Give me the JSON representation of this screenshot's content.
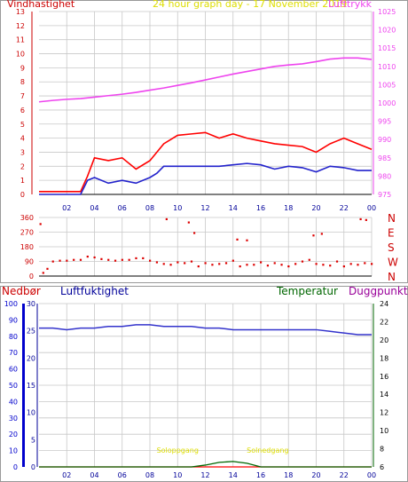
{
  "header_top": {
    "left_label": "Vindhastighet",
    "center_label": "24 hour graph day - 17 November 2019",
    "right_label": "Lufttrykk"
  },
  "header_bottom": {
    "rain_label": "Nedbør",
    "humidity_label": "Luftfuktighet",
    "temp_label": "Temperatur",
    "dew_label": "Duggpunkt"
  },
  "colors": {
    "wind_axis": "#cc0000",
    "pressure": "#ee44ee",
    "gust": "#ff0000",
    "wind_avg": "#2222cc",
    "direction": "#dd0000",
    "rain": "#0000cc",
    "humidity": "#3333cc",
    "temp": "#006600",
    "dew": "#990099",
    "sun_text": "#dddd00",
    "grid": "#c8c8c8"
  },
  "chart_data": [
    {
      "type": "line",
      "title": "24 hour graph day - 17 November 2019",
      "x_ticks": [
        "02",
        "04",
        "06",
        "08",
        "10",
        "12",
        "14",
        "16",
        "18",
        "20",
        "22",
        "00"
      ],
      "y_left": {
        "label": "Vindhastighet",
        "ylim": [
          0,
          13
        ],
        "ticks": [
          "0",
          "1",
          "2",
          "3",
          "4",
          "5",
          "6",
          "7",
          "8",
          "9",
          "10",
          "11",
          "12",
          "13"
        ]
      },
      "y_right": {
        "label": "Lufttrykk",
        "ylim": [
          975,
          1025
        ],
        "ticks": [
          "975",
          "980",
          "985",
          "990",
          "995",
          "1000",
          "1005",
          "1010",
          "1015",
          "1020",
          "1025"
        ]
      },
      "series": [
        {
          "name": "Lufttrykk",
          "axis": "right",
          "x": [
            0,
            1,
            2,
            3,
            4,
            5,
            6,
            7,
            8,
            9,
            10,
            11,
            12,
            13,
            14,
            15,
            16,
            17,
            18,
            19,
            20,
            21,
            22,
            23,
            24
          ],
          "values": [
            1000.3,
            1000.7,
            1001.0,
            1001.2,
            1001.6,
            1002.0,
            1002.4,
            1002.9,
            1003.5,
            1004.1,
            1004.8,
            1005.5,
            1006.3,
            1007.1,
            1007.9,
            1008.6,
            1009.3,
            1010.0,
            1010.4,
            1010.7,
            1011.3,
            1012.0,
            1012.3,
            1012.3,
            1011.9
          ]
        },
        {
          "name": "Vindkast",
          "axis": "left",
          "x": [
            0,
            1,
            2,
            3,
            3.5,
            4,
            5,
            6,
            7,
            8,
            8.5,
            9,
            10,
            11,
            12,
            13,
            14,
            15,
            16,
            17,
            18,
            19,
            20,
            21,
            22,
            23,
            24
          ],
          "values": [
            0.2,
            0.2,
            0.2,
            0.2,
            1.3,
            2.6,
            2.4,
            2.6,
            1.8,
            2.4,
            3.0,
            3.6,
            4.2,
            4.3,
            4.4,
            4.0,
            4.3,
            4.0,
            3.8,
            3.6,
            3.5,
            3.4,
            3.0,
            3.6,
            4.0,
            3.6,
            3.2
          ]
        },
        {
          "name": "Middelvind",
          "axis": "left",
          "x": [
            0,
            1,
            2,
            3,
            3.5,
            4,
            5,
            6,
            7,
            8,
            8.5,
            9,
            10,
            11,
            12,
            13,
            14,
            15,
            16,
            17,
            18,
            19,
            20,
            21,
            22,
            23,
            24
          ],
          "values": [
            0.0,
            0.0,
            0.0,
            0.0,
            1.0,
            1.2,
            0.8,
            1.0,
            0.8,
            1.2,
            1.5,
            2.0,
            2.0,
            2.0,
            2.0,
            2.0,
            2.1,
            2.2,
            2.1,
            1.8,
            2.0,
            1.9,
            1.6,
            2.0,
            1.9,
            1.7,
            1.7
          ]
        }
      ]
    },
    {
      "type": "scatter",
      "y_ticks": [
        "0",
        "90",
        "180",
        "270",
        "360"
      ],
      "y_right_labels": [
        "N",
        "W",
        "S",
        "E",
        "N"
      ],
      "ylim": [
        0,
        360
      ],
      "x_ticks": [
        "02",
        "04",
        "06",
        "08",
        "10",
        "12",
        "14",
        "16",
        "18",
        "20",
        "22",
        "00"
      ],
      "x": [
        0.1,
        0.3,
        0.6,
        1.0,
        1.5,
        2.0,
        2.5,
        3.0,
        3.5,
        4.0,
        4.5,
        5.0,
        5.5,
        6.0,
        6.5,
        7.0,
        7.5,
        8.0,
        8.5,
        9.0,
        9.5,
        10.0,
        10.5,
        11.0,
        11.5,
        12.0,
        12.5,
        13.0,
        13.5,
        14.0,
        14.5,
        15.0,
        15.5,
        16.0,
        16.5,
        17.0,
        17.5,
        18.0,
        18.5,
        19.0,
        19.5,
        20.0,
        20.5,
        21.0,
        21.5,
        22.0,
        22.5,
        23.0,
        23.5,
        24.0,
        9.2,
        10.8,
        11.2,
        14.3,
        15.0,
        19.8,
        20.4,
        23.2,
        23.6
      ],
      "values": [
        320,
        20,
        45,
        90,
        95,
        95,
        100,
        100,
        120,
        115,
        105,
        100,
        95,
        100,
        100,
        110,
        110,
        95,
        85,
        75,
        70,
        85,
        80,
        90,
        60,
        80,
        70,
        75,
        80,
        95,
        60,
        70,
        70,
        85,
        65,
        80,
        70,
        60,
        75,
        90,
        100,
        75,
        70,
        65,
        90,
        60,
        75,
        70,
        80,
        75,
        350,
        330,
        265,
        225,
        220,
        250,
        260,
        350,
        345
      ]
    },
    {
      "type": "line",
      "x_ticks": [
        "02",
        "04",
        "06",
        "08",
        "10",
        "12",
        "14",
        "16",
        "18",
        "20",
        "22",
        "00"
      ],
      "y_rain": {
        "label": "Nedbør",
        "ylim": [
          0,
          100
        ],
        "ticks": [
          "0",
          "10",
          "20",
          "30",
          "40",
          "50",
          "60",
          "70",
          "80",
          "90",
          "100"
        ]
      },
      "y_humidity": {
        "label": "Luftfuktighet",
        "ylim": [
          0,
          30
        ],
        "ticks": [
          "0",
          "5",
          "10",
          "15",
          "20",
          "25",
          "30"
        ]
      },
      "y_temp": {
        "label": "Temperatur",
        "ylim": [
          6,
          24
        ],
        "ticks": [
          "6",
          "8",
          "10",
          "12",
          "14",
          "16",
          "18",
          "20",
          "22",
          "24"
        ]
      },
      "annotations": [
        "Soloppgang",
        "Solnedgang"
      ],
      "series": [
        {
          "name": "Luftfuktighet",
          "axis": "rain",
          "x": [
            0,
            1,
            2,
            3,
            4,
            5,
            6,
            7,
            8,
            9,
            10,
            11,
            12,
            13,
            14,
            15,
            16,
            17,
            18,
            19,
            20,
            21,
            22,
            23,
            24
          ],
          "values": [
            85,
            85,
            84,
            85,
            85,
            86,
            86,
            87,
            87,
            86,
            86,
            86,
            85,
            85,
            84,
            84,
            84,
            84,
            84,
            84,
            84,
            83,
            82,
            81,
            81
          ]
        },
        {
          "name": "Nedbør",
          "axis": "rain",
          "x": [
            0,
            4,
            8,
            12,
            16,
            20,
            24
          ],
          "values": [
            0,
            0,
            0,
            0,
            0,
            0,
            0
          ]
        },
        {
          "name": "Temperatur",
          "axis": "temp",
          "x": [
            0,
            11,
            12,
            13,
            14,
            15,
            16,
            24
          ],
          "values": [
            6.0,
            6.0,
            6.2,
            6.5,
            6.6,
            6.4,
            6.0,
            6.0
          ]
        }
      ]
    }
  ],
  "sun_labels": {
    "sunrise": "Soloppgang",
    "sunset": "Solnedgang"
  }
}
